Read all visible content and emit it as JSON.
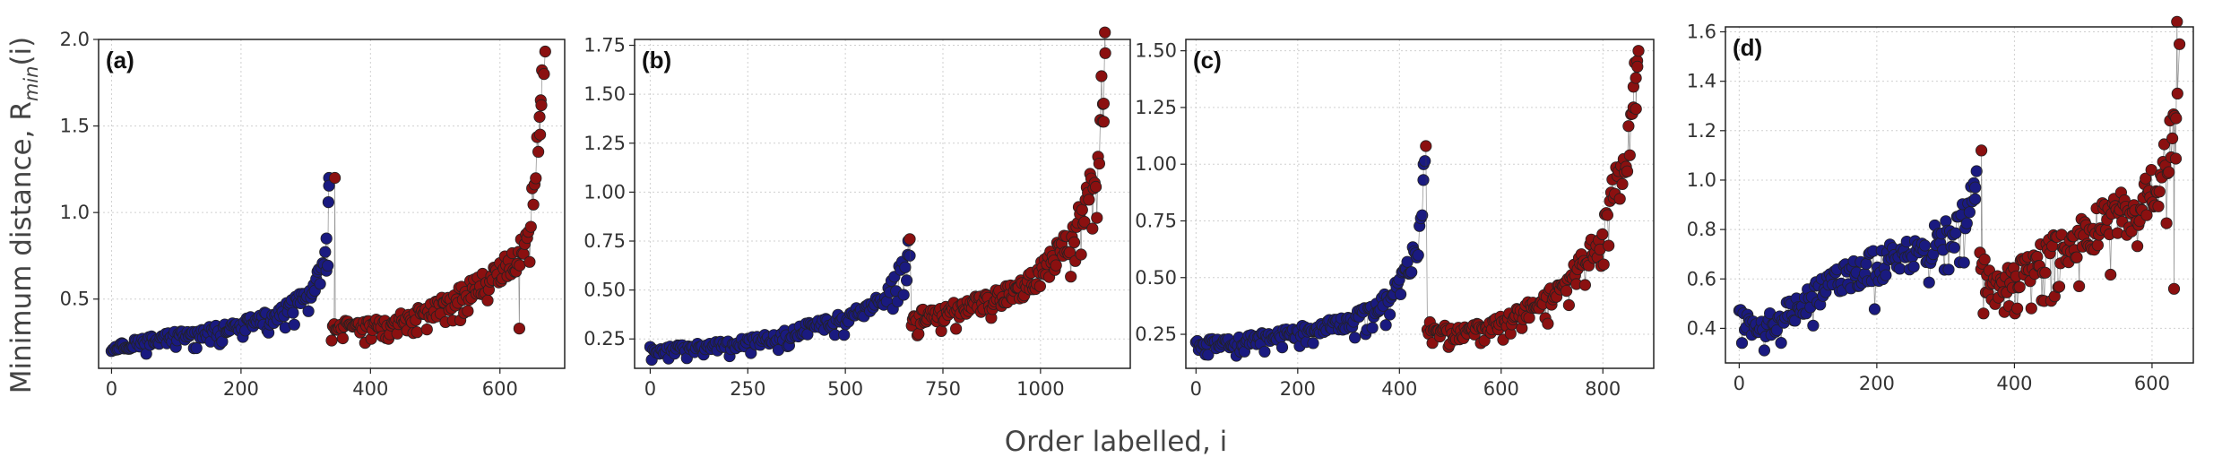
{
  "figure": {
    "ylabel": "Minimum distance, R_min(i)",
    "xlabel": "Order labelled, i"
  },
  "colors": {
    "group_1": "#1a1a80",
    "group_2": "#8b1010",
    "edge": "#222222"
  },
  "chart_data": [
    {
      "type": "scatter",
      "panel": "(a)",
      "xlim": [
        -20,
        700
      ],
      "ylim": [
        0.1,
        2.0
      ],
      "xticks": [
        0,
        200,
        400,
        600
      ],
      "yticks": [
        0.5,
        1.0,
        1.5,
        2.0
      ],
      "ytick_labels": [
        "0.5",
        "1.0",
        "1.5",
        "2.0"
      ],
      "grid": true,
      "segments": [
        {
          "color": "group_1",
          "anchors": [
            [
              0,
              0.22
            ],
            [
              30,
              0.24
            ],
            [
              80,
              0.27
            ],
            [
              150,
              0.31
            ],
            [
              200,
              0.34
            ],
            [
              250,
              0.4
            ],
            [
              280,
              0.45
            ],
            [
              310,
              0.55
            ],
            [
              330,
              0.7
            ],
            [
              338,
              1.2
            ]
          ],
          "highlights": [
            [
              332,
              0.85
            ],
            [
              335,
              1.06
            ],
            [
              336,
              1.2
            ]
          ]
        },
        {
          "color": "group_2",
          "anchors": [
            [
              340,
              0.35
            ],
            [
              380,
              0.33
            ],
            [
              420,
              0.36
            ],
            [
              460,
              0.4
            ],
            [
              500,
              0.44
            ],
            [
              540,
              0.52
            ],
            [
              580,
              0.6
            ],
            [
              610,
              0.68
            ],
            [
              630,
              0.75
            ],
            [
              645,
              0.9
            ],
            [
              655,
              1.2
            ],
            [
              665,
              1.9
            ]
          ],
          "highlights": [
            [
              345,
              1.2
            ],
            [
              630,
              0.33
            ],
            [
              662,
              1.45
            ],
            [
              664,
              1.62
            ],
            [
              668,
              1.8
            ],
            [
              670,
              1.93
            ]
          ]
        }
      ]
    },
    {
      "type": "scatter",
      "panel": "(b)",
      "xlim": [
        -40,
        1230
      ],
      "ylim": [
        0.1,
        1.78
      ],
      "xticks": [
        0,
        250,
        500,
        750,
        1000
      ],
      "yticks": [
        0.25,
        0.5,
        0.75,
        1.0,
        1.25,
        1.5,
        1.75
      ],
      "ytick_labels": [
        "0.25",
        "0.50",
        "0.75",
        "1.00",
        "1.25",
        "1.50",
        "1.75"
      ],
      "grid": true,
      "segments": [
        {
          "color": "group_1",
          "anchors": [
            [
              0,
              0.19
            ],
            [
              100,
              0.2
            ],
            [
              200,
              0.22
            ],
            [
              300,
              0.25
            ],
            [
              400,
              0.3
            ],
            [
              500,
              0.36
            ],
            [
              580,
              0.42
            ],
            [
              620,
              0.5
            ],
            [
              650,
              0.62
            ],
            [
              665,
              0.75
            ]
          ],
          "highlights": [
            [
              660,
              0.68
            ]
          ]
        },
        {
          "color": "group_2",
          "anchors": [
            [
              670,
              0.35
            ],
            [
              750,
              0.38
            ],
            [
              850,
              0.43
            ],
            [
              950,
              0.5
            ],
            [
              1000,
              0.58
            ],
            [
              1050,
              0.7
            ],
            [
              1100,
              0.85
            ],
            [
              1130,
              1.0
            ],
            [
              1150,
              1.25
            ],
            [
              1165,
              1.7
            ]
          ],
          "highlights": [
            [
              665,
              0.76
            ],
            [
              1160,
              1.45
            ],
            [
              1162,
              1.36
            ],
            [
              1166,
              1.71
            ]
          ]
        }
      ]
    },
    {
      "type": "scatter",
      "panel": "(c)",
      "xlim": [
        -20,
        900
      ],
      "ylim": [
        0.1,
        1.55
      ],
      "xticks": [
        0,
        200,
        400,
        600,
        800
      ],
      "yticks": [
        0.25,
        0.5,
        0.75,
        1.0,
        1.25,
        1.5
      ],
      "ytick_labels": [
        "0.25",
        "0.50",
        "0.75",
        "1.00",
        "1.25",
        "1.50"
      ],
      "grid": true,
      "segments": [
        {
          "color": "group_1",
          "anchors": [
            [
              0,
              0.2
            ],
            [
              100,
              0.22
            ],
            [
              200,
              0.26
            ],
            [
              300,
              0.3
            ],
            [
              350,
              0.35
            ],
            [
              400,
              0.45
            ],
            [
              430,
              0.6
            ],
            [
              445,
              0.75
            ],
            [
              450,
              1.08
            ]
          ],
          "highlights": [
            [
              447,
              0.93
            ]
          ]
        },
        {
          "color": "group_2",
          "anchors": [
            [
              455,
              0.28
            ],
            [
              520,
              0.25
            ],
            [
              600,
              0.3
            ],
            [
              680,
              0.38
            ],
            [
              740,
              0.5
            ],
            [
              790,
              0.65
            ],
            [
              820,
              0.85
            ],
            [
              850,
              1.05
            ],
            [
              870,
              1.5
            ]
          ],
          "highlights": [
            [
              452,
              1.08
            ],
            [
              860,
              1.25
            ],
            [
              865,
              1.38
            ],
            [
              868,
              1.43
            ],
            [
              870,
              1.5
            ]
          ]
        }
      ]
    },
    {
      "type": "scatter",
      "panel": "(d)",
      "xlim": [
        -20,
        660
      ],
      "ylim": [
        0.26,
        1.62
      ],
      "xticks": [
        0,
        200,
        400,
        600
      ],
      "yticks": [
        0.4,
        0.6,
        0.8,
        1.0,
        1.2,
        1.4,
        1.6
      ],
      "ytick_labels": [
        "0.4",
        "0.6",
        "0.8",
        "1.0",
        "1.2",
        "1.4",
        "1.6"
      ],
      "grid": true,
      "segments": [
        {
          "color": "group_1",
          "anchors": [
            [
              0,
              0.45
            ],
            [
              20,
              0.4
            ],
            [
              50,
              0.42
            ],
            [
              100,
              0.52
            ],
            [
              150,
              0.6
            ],
            [
              200,
              0.65
            ],
            [
              250,
              0.7
            ],
            [
              300,
              0.78
            ],
            [
              330,
              0.85
            ],
            [
              345,
              1.02
            ]
          ],
          "highlights": [
            [
              343,
              0.97
            ]
          ]
        },
        {
          "color": "group_2",
          "anchors": [
            [
              350,
              0.65
            ],
            [
              370,
              0.55
            ],
            [
              400,
              0.62
            ],
            [
              450,
              0.7
            ],
            [
              500,
              0.78
            ],
            [
              550,
              0.85
            ],
            [
              590,
              0.92
            ],
            [
              610,
              1.0
            ],
            [
              625,
              1.1
            ],
            [
              638,
              1.55
            ]
          ],
          "highlights": [
            [
              352,
              1.12
            ],
            [
              632,
              0.56
            ],
            [
              635,
              1.25
            ],
            [
              637,
              1.35
            ],
            [
              640,
              1.55
            ]
          ]
        }
      ]
    }
  ]
}
